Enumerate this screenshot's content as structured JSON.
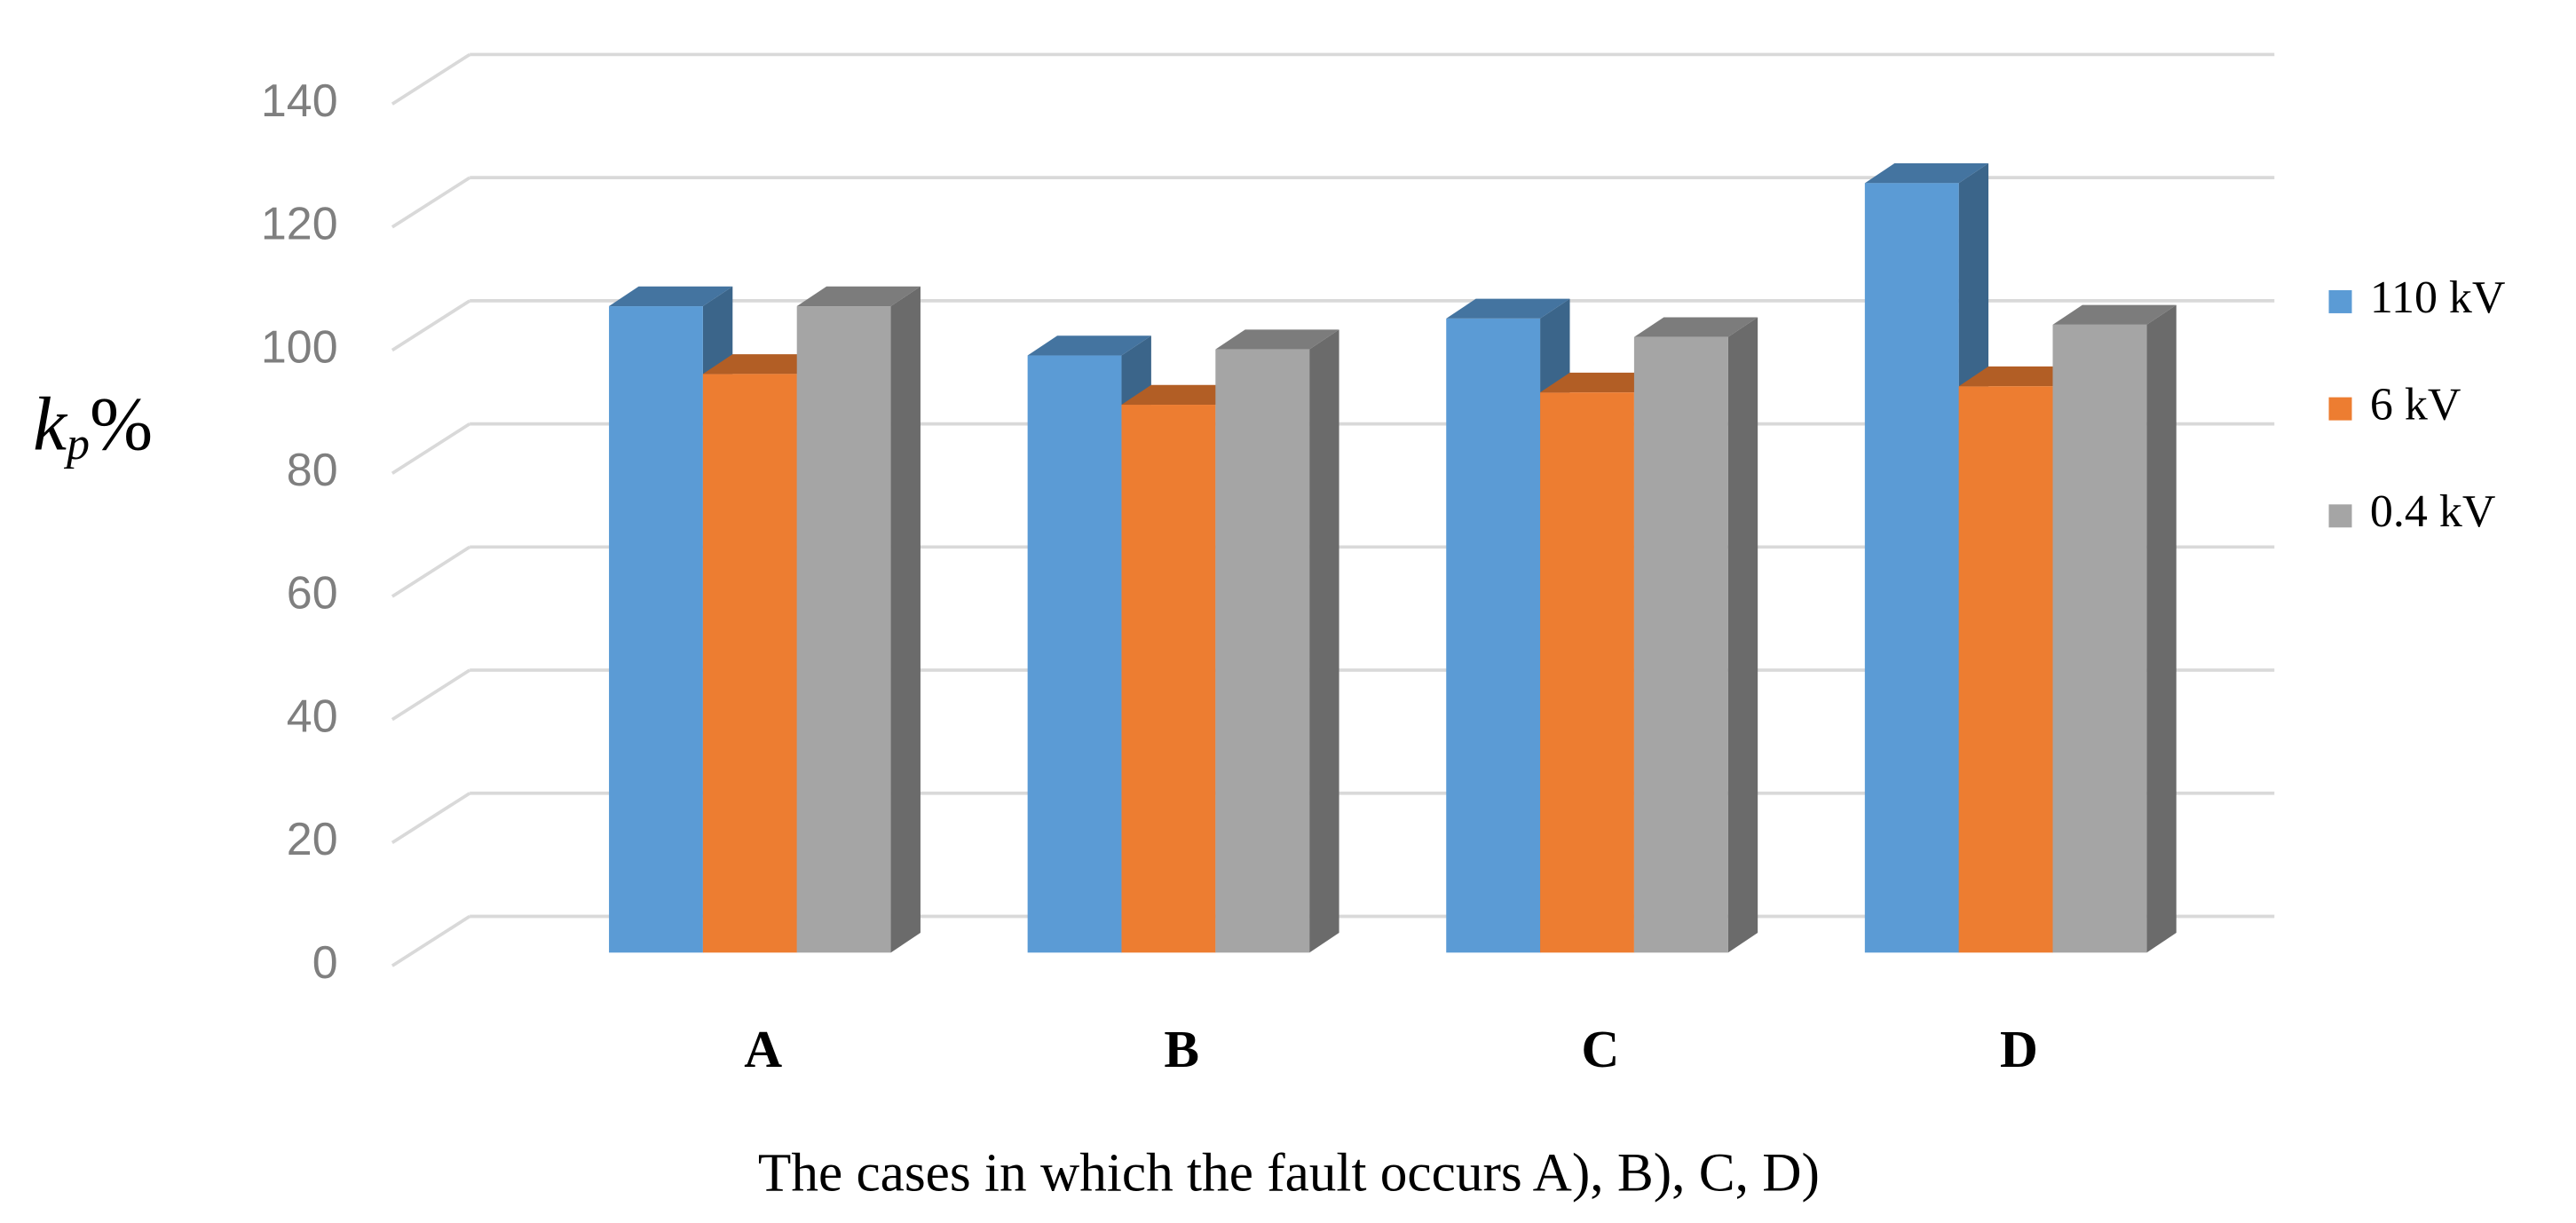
{
  "chart_data": {
    "type": "bar3d",
    "xlabel": "The cases in which the fault occurs A), B), C, D)",
    "ylabel_parts": [
      "k",
      "p",
      "%"
    ],
    "categories": [
      "A",
      "B",
      "C",
      "D"
    ],
    "series": [
      {
        "name": "110 kV",
        "color": "#5b9bd5",
        "values": [
          105,
          97,
          103,
          125
        ]
      },
      {
        "name": "6 kV",
        "color": "#ed7d31",
        "values": [
          94,
          89,
          91,
          92
        ]
      },
      {
        "name": "0.4 kV",
        "color": "#a5a5a5",
        "values": [
          105,
          98,
          100,
          102
        ]
      }
    ],
    "ylim": [
      0,
      140
    ],
    "yticks": [
      0,
      20,
      40,
      60,
      80,
      100,
      120,
      140
    ],
    "grid": true,
    "legend": "right"
  }
}
